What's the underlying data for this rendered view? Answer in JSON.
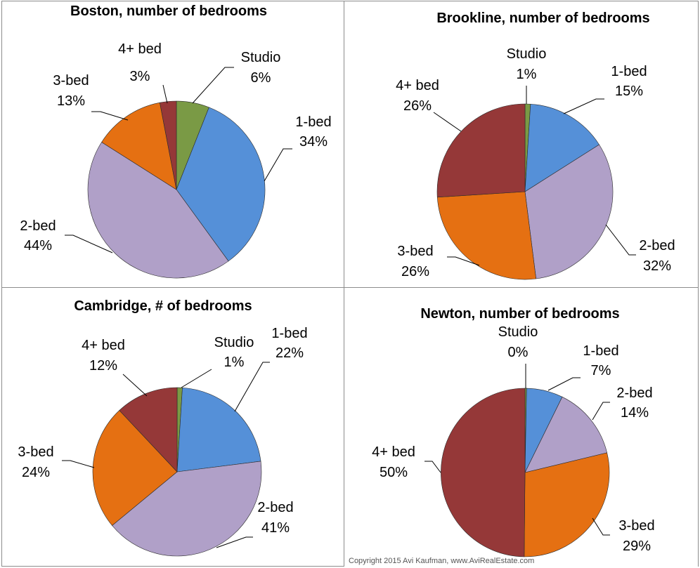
{
  "chart_data": [
    {
      "type": "pie",
      "title": "Boston, number of bedrooms",
      "categories": [
        "Studio",
        "1-bed",
        "2-bed",
        "3-bed",
        "4+ bed"
      ],
      "values": [
        6,
        34,
        44,
        13,
        3
      ],
      "labels": [
        "6%",
        "34%",
        "44%",
        "13%",
        "3%"
      ]
    },
    {
      "type": "pie",
      "title": "Brookline, number of bedrooms",
      "categories": [
        "Studio",
        "1-bed",
        "2-bed",
        "3-bed",
        "4+ bed"
      ],
      "values": [
        1,
        15,
        32,
        26,
        26
      ],
      "labels": [
        "1%",
        "15%",
        "32%",
        "26%",
        "26%"
      ]
    },
    {
      "type": "pie",
      "title": "Cambridge, # of bedrooms",
      "categories": [
        "Studio",
        "1-bed",
        "2-bed",
        "3-bed",
        "4+ bed"
      ],
      "values": [
        1,
        22,
        41,
        24,
        12
      ],
      "labels": [
        "1%",
        "22%",
        "41%",
        "24%",
        "12%"
      ]
    },
    {
      "type": "pie",
      "title": "Newton, number of bedrooms",
      "categories": [
        "Studio",
        "1-bed",
        "2-bed",
        "3-bed",
        "4+ bed"
      ],
      "values": [
        0.3,
        7,
        14,
        29,
        50
      ],
      "labels": [
        "0%",
        "7%",
        "14%",
        "29%",
        "50%"
      ]
    }
  ],
  "colors": [
    "#7a9a45",
    "#5590d8",
    "#b0a0c8",
    "#e57012",
    "#953838"
  ],
  "copyright": "Copyright 2015 Avi Kaufman, www.AviRealEstate.com"
}
